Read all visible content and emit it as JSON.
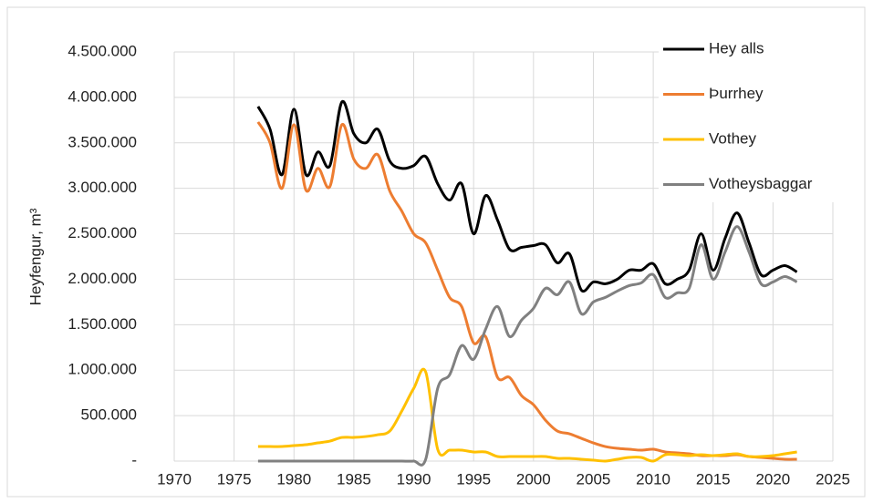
{
  "chart_data": {
    "type": "line",
    "y_label": "Heyfengur, m³",
    "x": [
      1977,
      1978,
      1979,
      1980,
      1981,
      1982,
      1983,
      1984,
      1985,
      1986,
      1987,
      1988,
      1989,
      1990,
      1991,
      1992,
      1993,
      1994,
      1995,
      1996,
      1997,
      1998,
      1999,
      2000,
      2001,
      2002,
      2003,
      2004,
      2005,
      2006,
      2007,
      2008,
      2009,
      2010,
      2011,
      2012,
      2013,
      2014,
      2015,
      2016,
      2017,
      2018,
      2019,
      2020,
      2021,
      2022
    ],
    "series": [
      {
        "name": "Hey alls",
        "color": "#000000",
        "values": [
          3900000,
          3650000,
          3150000,
          3870000,
          3150000,
          3400000,
          3250000,
          3950000,
          3600000,
          3500000,
          3650000,
          3300000,
          3220000,
          3250000,
          3350000,
          3050000,
          2870000,
          3050000,
          2500000,
          2920000,
          2650000,
          2330000,
          2350000,
          2370000,
          2380000,
          2180000,
          2280000,
          1880000,
          1970000,
          1950000,
          2000000,
          2100000,
          2100000,
          2170000,
          1950000,
          2000000,
          2100000,
          2500000,
          2100000,
          2450000,
          2730000,
          2400000,
          2050000,
          2100000,
          2150000,
          2080000
        ]
      },
      {
        "name": "Þurrhey",
        "color": "#ed7d31",
        "values": [
          3730000,
          3500000,
          3000000,
          3700000,
          2980000,
          3220000,
          3020000,
          3700000,
          3320000,
          3220000,
          3370000,
          2970000,
          2750000,
          2500000,
          2400000,
          2100000,
          1800000,
          1700000,
          1300000,
          1370000,
          920000,
          920000,
          720000,
          620000,
          450000,
          330000,
          300000,
          250000,
          200000,
          160000,
          140000,
          130000,
          120000,
          130000,
          100000,
          90000,
          80000,
          60000,
          60000,
          60000,
          70000,
          50000,
          40000,
          30000,
          20000,
          20000
        ]
      },
      {
        "name": "Vothey",
        "color": "#ffc000",
        "values": [
          160000,
          160000,
          160000,
          170000,
          180000,
          200000,
          220000,
          260000,
          260000,
          270000,
          290000,
          330000,
          550000,
          800000,
          980000,
          130000,
          120000,
          120000,
          100000,
          100000,
          50000,
          50000,
          50000,
          50000,
          50000,
          30000,
          30000,
          20000,
          10000,
          0,
          20000,
          40000,
          40000,
          0,
          70000,
          70000,
          60000,
          70000,
          60000,
          70000,
          80000,
          50000,
          50000,
          60000,
          80000,
          100000
        ]
      },
      {
        "name": "Votheysbaggar",
        "color": "#808080",
        "values": [
          0,
          0,
          0,
          0,
          0,
          0,
          0,
          0,
          0,
          0,
          0,
          0,
          0,
          0,
          20000,
          800000,
          950000,
          1270000,
          1120000,
          1450000,
          1700000,
          1370000,
          1550000,
          1680000,
          1900000,
          1830000,
          1970000,
          1620000,
          1750000,
          1800000,
          1870000,
          1930000,
          1960000,
          2050000,
          1800000,
          1850000,
          1900000,
          2380000,
          2000000,
          2300000,
          2580000,
          2300000,
          1950000,
          1970000,
          2030000,
          1970000
        ]
      }
    ],
    "xlim": [
      1970,
      2025
    ],
    "xticks": [
      1970,
      1975,
      1980,
      1985,
      1990,
      1995,
      2000,
      2005,
      2010,
      2015,
      2020,
      2025
    ],
    "ylim": [
      0,
      4500000
    ],
    "yticks": [
      {
        "value": 0,
        "label": "-"
      },
      {
        "value": 500000,
        "label": "500.000"
      },
      {
        "value": 1000000,
        "label": "1.000.000"
      },
      {
        "value": 1500000,
        "label": "1.500.000"
      },
      {
        "value": 2000000,
        "label": "2.000.000"
      },
      {
        "value": 2500000,
        "label": "2.500.000"
      },
      {
        "value": 3000000,
        "label": "3.000.000"
      },
      {
        "value": 3500000,
        "label": "3.500.000"
      },
      {
        "value": 4000000,
        "label": "4.000.000"
      },
      {
        "value": 4500000,
        "label": "4.500.000"
      }
    ],
    "grid": true,
    "legend": "top-right"
  }
}
